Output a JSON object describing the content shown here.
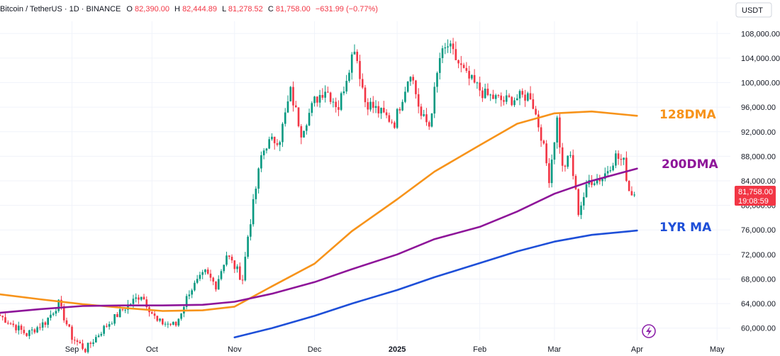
{
  "header": {
    "symbol": "Bitcoin / TetherUS · 1D · BINANCE",
    "open_label": "O",
    "open": "82,390.00",
    "high_label": "H",
    "high": "82,444.89",
    "low_label": "L",
    "low": "81,278.52",
    "close_label": "C",
    "close": "81,758.00",
    "change": "−631.99 (−0.77%)"
  },
  "currency": "USDT",
  "price_tag": {
    "price": "81,758.00",
    "countdown": "19:08:59"
  },
  "colors": {
    "up": "#089981",
    "down": "#f23645",
    "ma128": "#f7931a",
    "ma200": "#8e1599",
    "ma1yr": "#1e4fd8",
    "grid": "#f0f3fa",
    "axis_text": "#131722"
  },
  "chart_data": {
    "type": "line",
    "title": "",
    "x_range": [
      "2024-08-05",
      "2025-05-06"
    ],
    "ylim": [
      58000,
      110000
    ],
    "grid": true,
    "y_ticks": [
      "60,000.00",
      "64,000.00",
      "68,000.00",
      "72,000.00",
      "76,000.00",
      "80,000.00",
      "84,000.00",
      "88,000.00",
      "92,000.00",
      "96,000.00",
      "100,000.00",
      "104,000.00",
      "108,000.00"
    ],
    "x_ticks": [
      {
        "label": "Sep",
        "date": "2024-09-01"
      },
      {
        "label": "Oct",
        "date": "2024-10-01"
      },
      {
        "label": "Nov",
        "date": "2024-11-01"
      },
      {
        "label": "Dec",
        "date": "2024-12-01"
      },
      {
        "label": "2025",
        "date": "2025-01-01",
        "bold": true
      },
      {
        "label": "Feb",
        "date": "2025-02-01"
      },
      {
        "label": "Mar",
        "date": "2025-03-01"
      },
      {
        "label": "Apr",
        "date": "2025-04-01"
      },
      {
        "label": "May",
        "date": "2025-05-01"
      }
    ],
    "candle_anchors": [
      {
        "date": "2024-08-05",
        "price": 62000
      },
      {
        "date": "2024-08-10",
        "price": 60500
      },
      {
        "date": "2024-08-15",
        "price": 59000
      },
      {
        "date": "2024-08-22",
        "price": 61000
      },
      {
        "date": "2024-08-27",
        "price": 64000
      },
      {
        "date": "2024-09-01",
        "price": 58500
      },
      {
        "date": "2024-09-06",
        "price": 56500
      },
      {
        "date": "2024-09-13",
        "price": 60000
      },
      {
        "date": "2024-09-20",
        "price": 63000
      },
      {
        "date": "2024-09-27",
        "price": 65500
      },
      {
        "date": "2024-10-03",
        "price": 61000
      },
      {
        "date": "2024-10-10",
        "price": 60500
      },
      {
        "date": "2024-10-15",
        "price": 66000
      },
      {
        "date": "2024-10-21",
        "price": 69000
      },
      {
        "date": "2024-10-25",
        "price": 67000
      },
      {
        "date": "2024-10-29",
        "price": 72000
      },
      {
        "date": "2024-11-04",
        "price": 68000
      },
      {
        "date": "2024-11-06",
        "price": 75000
      },
      {
        "date": "2024-11-11",
        "price": 88000
      },
      {
        "date": "2024-11-13",
        "price": 90000
      },
      {
        "date": "2024-11-18",
        "price": 91000
      },
      {
        "date": "2024-11-22",
        "price": 98500
      },
      {
        "date": "2024-11-26",
        "price": 92000
      },
      {
        "date": "2024-12-01",
        "price": 97000
      },
      {
        "date": "2024-12-05",
        "price": 99000
      },
      {
        "date": "2024-12-10",
        "price": 96000
      },
      {
        "date": "2024-12-16",
        "price": 106000
      },
      {
        "date": "2024-12-20",
        "price": 97000
      },
      {
        "date": "2024-12-26",
        "price": 95000
      },
      {
        "date": "2024-12-31",
        "price": 93500
      },
      {
        "date": "2025-01-06",
        "price": 102000
      },
      {
        "date": "2025-01-10",
        "price": 94500
      },
      {
        "date": "2025-01-13",
        "price": 93000
      },
      {
        "date": "2025-01-17",
        "price": 104000
      },
      {
        "date": "2025-01-20",
        "price": 106000
      },
      {
        "date": "2025-01-27",
        "price": 101000
      },
      {
        "date": "2025-02-03",
        "price": 98000
      },
      {
        "date": "2025-02-10",
        "price": 97000
      },
      {
        "date": "2025-02-20",
        "price": 98000
      },
      {
        "date": "2025-02-24",
        "price": 91500
      },
      {
        "date": "2025-02-27",
        "price": 84500
      },
      {
        "date": "2025-03-02",
        "price": 94000
      },
      {
        "date": "2025-03-04",
        "price": 86000
      },
      {
        "date": "2025-03-07",
        "price": 88000
      },
      {
        "date": "2025-03-10",
        "price": 79000
      },
      {
        "date": "2025-03-14",
        "price": 84000
      },
      {
        "date": "2025-03-19",
        "price": 84500
      },
      {
        "date": "2025-03-24",
        "price": 88000
      },
      {
        "date": "2025-03-27",
        "price": 87000
      },
      {
        "date": "2025-03-29",
        "price": 82500
      },
      {
        "date": "2025-03-31",
        "price": 81758
      }
    ],
    "series": [
      {
        "name": "128DMA",
        "x": [
          "2024-08-05",
          "2024-08-20",
          "2024-09-05",
          "2024-09-20",
          "2024-10-05",
          "2024-10-20",
          "2024-11-01",
          "2024-11-15",
          "2024-12-01",
          "2024-12-15",
          "2025-01-01",
          "2025-01-15",
          "2025-02-01",
          "2025-02-15",
          "2025-03-01",
          "2025-03-15",
          "2025-04-01"
        ],
        "y": [
          65500,
          64700,
          63900,
          63300,
          62800,
          62900,
          63500,
          66800,
          70500,
          75800,
          81000,
          85500,
          89800,
          93300,
          95000,
          95300,
          94600
        ]
      },
      {
        "name": "200DMA",
        "x": [
          "2024-08-05",
          "2024-08-20",
          "2024-09-05",
          "2024-09-20",
          "2024-10-05",
          "2024-10-20",
          "2024-11-01",
          "2024-11-15",
          "2024-12-01",
          "2024-12-15",
          "2025-01-01",
          "2025-01-15",
          "2025-02-01",
          "2025-02-15",
          "2025-03-01",
          "2025-03-15",
          "2025-04-01"
        ],
        "y": [
          62500,
          63100,
          63600,
          63700,
          63700,
          63800,
          64300,
          65600,
          67500,
          69600,
          72000,
          74500,
          76500,
          79000,
          81900,
          84000,
          86000
        ]
      },
      {
        "name": "1YR MA",
        "x": [
          "2024-11-01",
          "2024-11-15",
          "2024-12-01",
          "2024-12-15",
          "2025-01-01",
          "2025-01-15",
          "2025-02-01",
          "2025-02-15",
          "2025-03-01",
          "2025-03-15",
          "2025-04-01"
        ],
        "y": [
          58500,
          60000,
          62000,
          64000,
          66200,
          68300,
          70600,
          72500,
          74100,
          75200,
          75900
        ]
      }
    ]
  }
}
